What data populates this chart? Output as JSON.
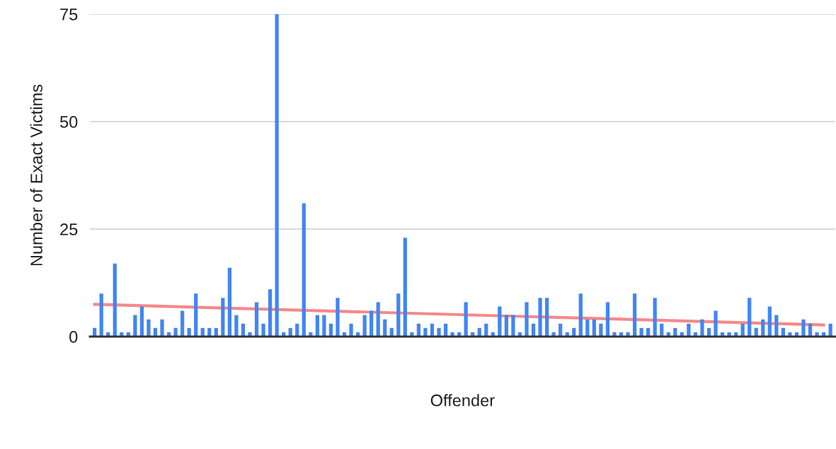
{
  "chart_data": {
    "type": "bar",
    "xlabel": "Offender",
    "ylabel": "Number of Exact Victims",
    "categories": [
      null,
      null,
      null,
      null,
      null,
      null,
      null,
      null,
      null,
      null,
      null,
      null,
      null,
      null,
      null,
      null,
      null,
      null,
      null,
      null,
      null,
      null,
      null,
      null,
      null,
      null,
      null,
      null,
      null,
      null,
      null,
      null,
      null,
      null,
      null,
      null,
      null,
      null,
      null,
      null,
      null,
      null,
      null,
      null,
      null,
      null,
      null,
      null,
      null,
      null,
      null,
      null,
      null,
      null,
      null,
      null,
      null,
      null,
      null,
      null,
      null,
      null,
      null,
      null,
      null,
      null,
      null,
      null,
      null,
      null,
      null,
      null,
      null,
      null,
      null,
      null,
      null,
      null,
      null,
      null,
      null,
      null,
      null,
      null,
      null,
      null,
      null,
      null,
      null,
      null,
      null,
      null,
      null,
      null,
      null,
      null,
      null,
      null,
      null,
      null,
      null,
      null,
      null,
      null,
      null,
      null,
      null,
      null,
      null,
      null
    ],
    "series": [
      {
        "color": "#4285f4",
        "values": [
          2,
          10,
          1,
          17,
          1,
          1,
          5,
          7,
          4,
          2,
          4,
          1,
          2,
          6,
          2,
          10,
          2,
          2,
          2,
          9,
          16,
          5,
          3,
          1,
          8,
          3,
          11,
          75,
          1,
          2,
          3,
          31,
          1,
          5,
          5,
          3,
          9,
          1,
          3,
          1,
          5,
          6,
          8,
          4,
          2,
          10,
          23,
          1,
          3,
          2,
          3,
          2,
          3,
          1,
          1,
          8,
          1,
          2,
          3,
          1,
          7,
          5,
          5,
          1,
          8,
          3,
          9,
          9,
          1,
          3,
          1,
          2,
          10,
          4,
          4,
          3,
          8,
          1,
          1,
          1,
          10,
          2,
          2,
          9,
          3,
          1,
          2,
          1,
          3,
          1,
          4,
          2,
          6,
          1,
          1,
          1,
          3,
          9,
          2,
          4,
          7,
          5,
          2,
          1,
          1,
          4,
          3,
          1,
          1,
          3
        ]
      },
      {
        "type": "line",
        "color": "#f47c7c",
        "values": [
          7.5,
          null,
          null,
          null,
          null,
          null,
          null,
          null,
          null,
          null,
          null,
          null,
          null,
          null,
          null,
          null,
          null,
          null,
          null,
          null,
          null,
          null,
          null,
          null,
          null,
          null,
          null,
          null,
          null,
          null,
          null,
          null,
          null,
          null,
          null,
          null,
          null,
          null,
          null,
          null,
          null,
          null,
          null,
          null,
          null,
          null,
          null,
          null,
          null,
          null,
          null,
          null,
          null,
          null,
          null,
          null,
          null,
          null,
          null,
          null,
          null,
          null,
          null,
          null,
          null,
          null,
          null,
          null,
          null,
          null,
          null,
          null,
          null,
          null,
          null,
          null,
          null,
          null,
          null,
          null,
          null,
          null,
          null,
          null,
          null,
          null,
          null,
          null,
          null,
          null,
          null,
          null,
          null,
          null,
          null,
          null,
          null,
          null,
          null,
          null,
          null,
          null,
          null,
          null,
          null,
          null,
          null,
          null,
          2.7,
          null
        ]
      }
    ],
    "ylim": [
      0,
      75
    ],
    "yticks": [
      0,
      25,
      50,
      75
    ],
    "grid": "y"
  }
}
